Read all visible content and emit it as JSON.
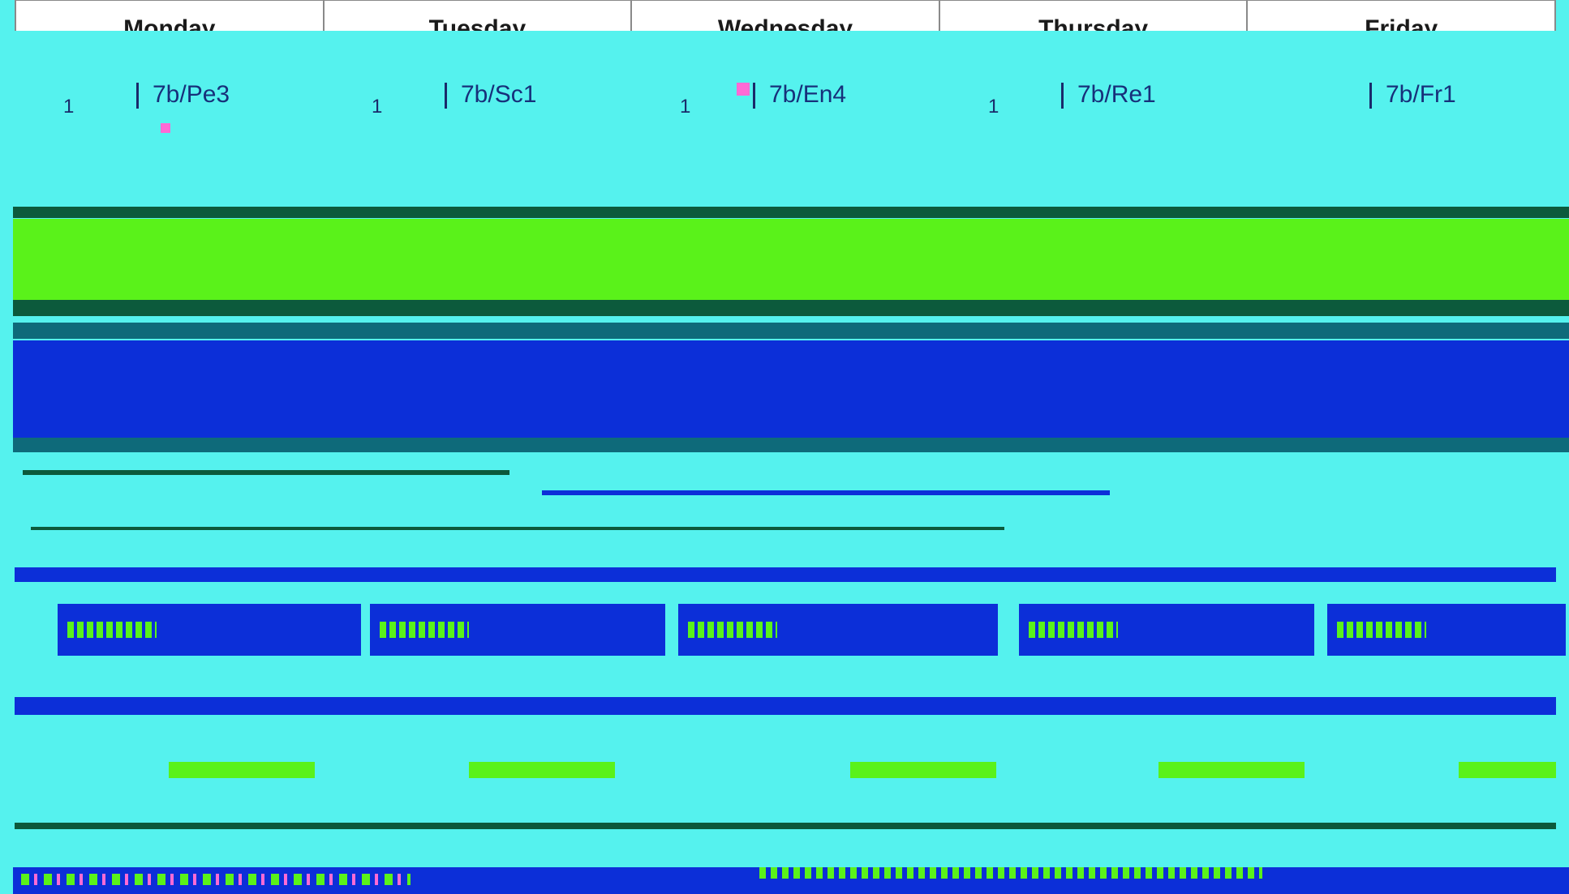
{
  "header": {
    "days": [
      "Monday",
      "Tuesday",
      "Wednesday",
      "Thursday",
      "Friday"
    ]
  },
  "lessons": [
    {
      "period": "1",
      "code": "7b/Pe3"
    },
    {
      "period": "1",
      "code": "7b/Sc1"
    },
    {
      "period": "1",
      "code": "7b/En4"
    },
    {
      "period": "1",
      "code": "7b/Re1"
    },
    {
      "period": "",
      "code": "7b/Fr1"
    }
  ],
  "colors": {
    "background": "#55f2ee",
    "green": "#5af21a",
    "blue": "#0c2fd8",
    "dark_green": "#0c5a3c",
    "accent_pink": "#ff6ad5"
  }
}
